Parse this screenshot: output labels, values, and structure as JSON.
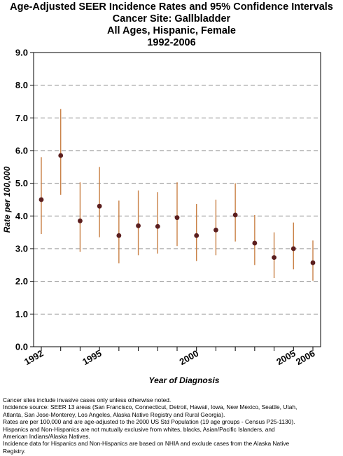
{
  "title_lines": [
    "Age-Adjusted SEER Incidence Rates and 95% Confidence Intervals",
    "Cancer Site: Gallbladder",
    "All Ages, Hispanic, Female",
    "1992-2006"
  ],
  "chart_data": {
    "type": "scatter",
    "title": "Age-Adjusted SEER Incidence Rates and 95% Confidence Intervals",
    "xlabel": "Year of Diagnosis",
    "ylabel": "Rate per 100,000",
    "xlim": [
      1992,
      2006
    ],
    "ylim": [
      0,
      9
    ],
    "y_ticks": [
      0,
      1,
      2,
      3,
      4,
      5,
      6,
      7,
      8,
      9
    ],
    "y_tick_labels": [
      "0.0",
      "1.0",
      "2.0",
      "3.0",
      "4.0",
      "5.0",
      "6.0",
      "7.0",
      "8.0",
      "9.0"
    ],
    "x_ticks": [
      1992,
      1993,
      1994,
      1995,
      1996,
      1997,
      1998,
      1999,
      2000,
      2001,
      2002,
      2003,
      2004,
      2005,
      2006
    ],
    "x_tick_labels": [
      {
        "x": 1992,
        "label": "1992"
      },
      {
        "x": 1995,
        "label": "1995"
      },
      {
        "x": 2000,
        "label": "2000"
      },
      {
        "x": 2005,
        "label": "2005"
      },
      {
        "x": 2006,
        "label": "2006"
      }
    ],
    "grid": "horizontal dashed",
    "series": [
      {
        "x": [
          1992,
          1993,
          1994,
          1995,
          1996,
          1997,
          1998,
          1999,
          2000,
          2001,
          2002,
          2003,
          2004,
          2005,
          2006
        ],
        "values": [
          4.5,
          5.85,
          3.85,
          4.3,
          3.4,
          3.7,
          3.68,
          3.95,
          3.4,
          3.57,
          4.03,
          3.17,
          2.73,
          3.0,
          2.57
        ],
        "lower": [
          3.45,
          4.65,
          2.9,
          3.35,
          2.55,
          2.8,
          2.85,
          3.08,
          2.62,
          2.8,
          3.22,
          2.5,
          2.1,
          2.37,
          2.02
        ],
        "upper": [
          5.8,
          7.27,
          5.03,
          5.5,
          4.47,
          4.78,
          4.73,
          5.03,
          4.37,
          4.5,
          5.0,
          4.03,
          3.5,
          3.8,
          3.25
        ]
      }
    ],
    "colors": {
      "point": "#5b1e1e",
      "ci": "#c98146",
      "grid": "#8a8a8a"
    }
  },
  "notes": [
    "Cancer sites include invasive cases only unless otherwise noted.",
    "Incidence source: SEER 13 areas (San Francisco, Connecticut, Detroit, Hawaii, Iowa, New Mexico, Seattle, Utah,",
    "Atlanta, San Jose-Monterey, Los Angeles, Alaska Native Registry and Rural Georgia).",
    "Rates are per 100,000 and are age-adjusted to the 2000 US Std Population (19 age groups - Census P25-1130).",
    "Hispanics and Non-Hispanics are not mutually exclusive from whites, blacks, Asian/Pacific Islanders, and",
    "American Indians/Alaska Natives.",
    "Incidence data for Hispanics and Non-Hispanics are based on NHIA and exclude cases from the Alaska Native",
    "Registry."
  ]
}
